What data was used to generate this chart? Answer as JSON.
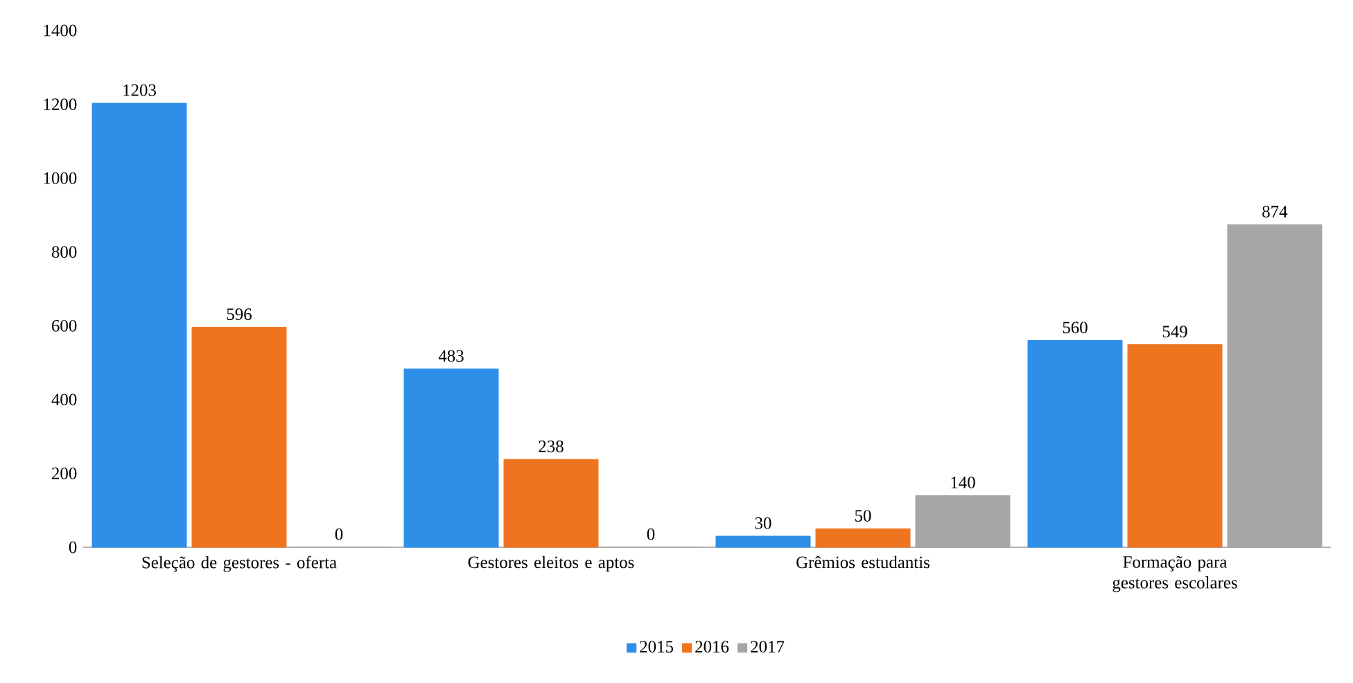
{
  "chart_data": {
    "type": "bar",
    "categories": [
      "Seleção de gestores - oferta",
      "Gestores eleitos e aptos",
      "Grêmios estudantis",
      "Formação para gestores escolares"
    ],
    "series": [
      {
        "name": "2015",
        "color": "#2e8fe8",
        "values": [
          1203,
          483,
          30,
          560
        ]
      },
      {
        "name": "2016",
        "color": "#ee7420",
        "values": [
          596,
          238,
          50,
          549
        ]
      },
      {
        "name": "2017",
        "color": "#a6a6a6",
        "values": [
          0,
          0,
          140,
          874
        ]
      }
    ],
    "ylim": [
      0,
      1400
    ],
    "yticks": [
      0,
      200,
      400,
      600,
      800,
      1000,
      1200,
      1400
    ],
    "data_labels": true,
    "legend": "bottom",
    "grid": false
  }
}
